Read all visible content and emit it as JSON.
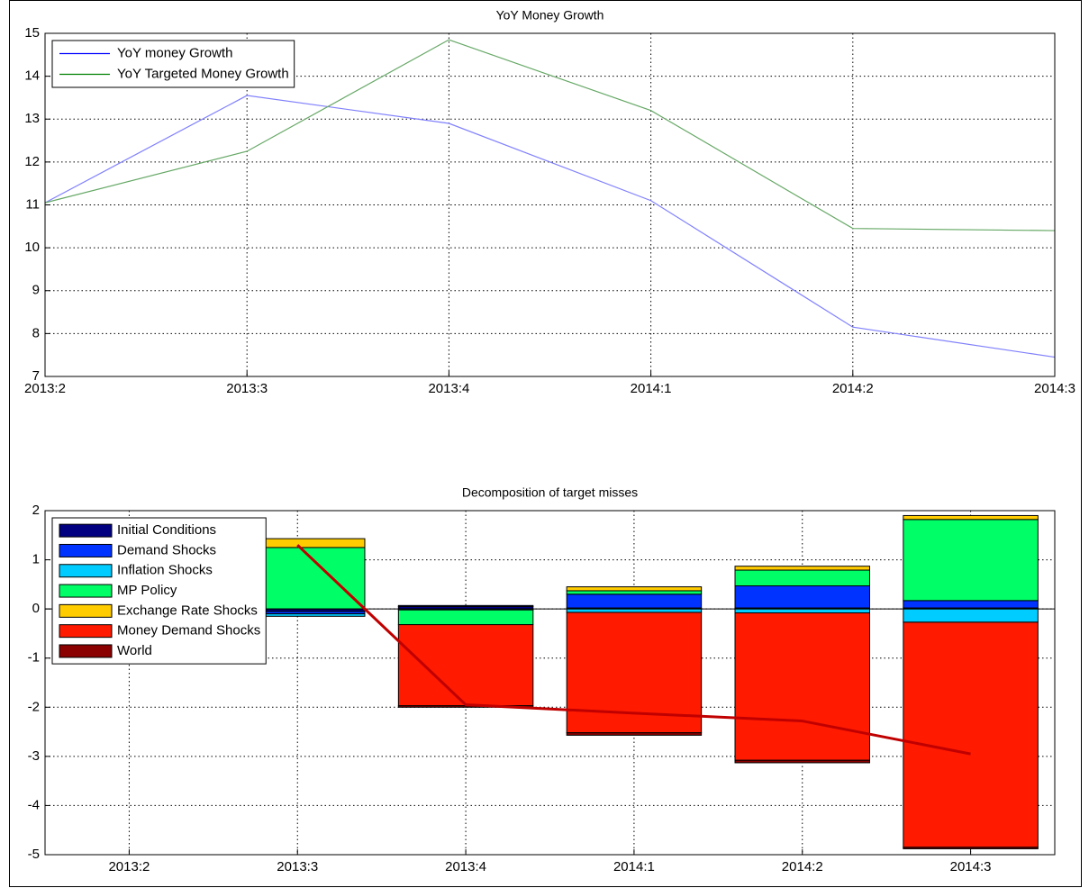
{
  "chart_data": [
    {
      "type": "line",
      "title": "YoY Money Growth",
      "categories": [
        "2013:2",
        "2013:3",
        "2013:4",
        "2014:1",
        "2014:2",
        "2014:3"
      ],
      "series": [
        {
          "name": "YoY money Growth",
          "color": "#8080ff",
          "values": [
            11.05,
            13.55,
            12.9,
            11.1,
            8.15,
            7.45
          ]
        },
        {
          "name": "YoY Targeted Money Growth",
          "color": "#66a866",
          "values": [
            11.05,
            12.25,
            14.85,
            13.2,
            10.45,
            10.4
          ]
        }
      ],
      "ylim": [
        7,
        15
      ],
      "yticks": [
        7,
        8,
        9,
        10,
        11,
        12,
        13,
        14,
        15
      ],
      "grid": true,
      "legend": "upper left"
    },
    {
      "type": "bar",
      "stacked": true,
      "title": "Decomposition of target misses",
      "categories": [
        "2013:2",
        "2013:3",
        "2013:4",
        "2014:1",
        "2014:2",
        "2014:3"
      ],
      "series": [
        {
          "name": "Initial Conditions",
          "color": "#000080",
          "values": [
            0,
            -0.05,
            0.05,
            0.02,
            0.02,
            0.02
          ]
        },
        {
          "name": "Demand Shocks",
          "color": "#0033ff",
          "values": [
            0,
            -0.05,
            0.02,
            0.28,
            0.45,
            0.15
          ]
        },
        {
          "name": "Inflation Shocks",
          "color": "#00ccff",
          "values": [
            0,
            -0.05,
            -0.02,
            -0.07,
            -0.08,
            -0.27
          ]
        },
        {
          "name": "MP Policy",
          "color": "#00ff66",
          "values": [
            0,
            1.25,
            -0.3,
            0.07,
            0.32,
            1.65
          ]
        },
        {
          "name": "Exchange Rate Shocks",
          "color": "#ffcc00",
          "values": [
            0,
            0.18,
            0,
            0.08,
            0.08,
            0.08
          ]
        },
        {
          "name": "Money Demand Shocks",
          "color": "#ff1a00",
          "values": [
            0,
            0,
            -1.65,
            -2.45,
            -3.0,
            -4.58
          ]
        },
        {
          "name": "World",
          "color": "#8b0000",
          "values": [
            0,
            0,
            -0.03,
            -0.05,
            -0.05,
            -0.03
          ]
        }
      ],
      "line": {
        "color": "#c00000",
        "values": [
          null,
          1.3,
          -1.95,
          -2.12,
          -2.28,
          -2.95
        ]
      },
      "ylim": [
        -5,
        2
      ],
      "yticks": [
        -5,
        -4,
        -3,
        -2,
        -1,
        0,
        1,
        2
      ],
      "grid": true,
      "legend": "upper left"
    }
  ]
}
